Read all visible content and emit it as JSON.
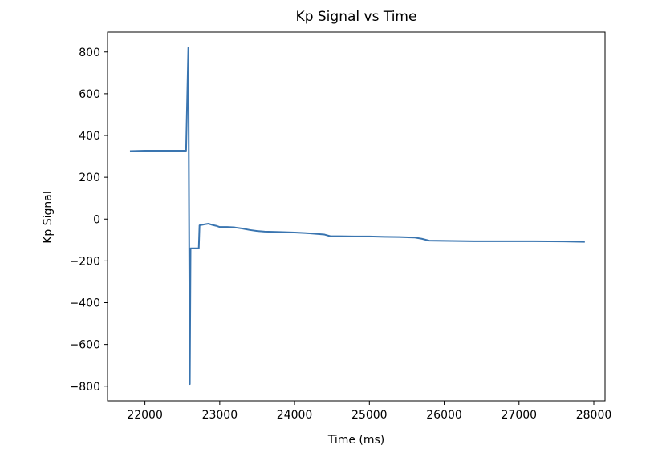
{
  "chart_data": {
    "type": "line",
    "title": "Kp Signal vs Time",
    "xlabel": "Time (ms)",
    "ylabel": "Kp Signal",
    "xlim": [
      21500,
      28150
    ],
    "ylim": [
      -870,
      895
    ],
    "xticks": [
      22000,
      23000,
      24000,
      25000,
      26000,
      27000,
      28000
    ],
    "yticks": [
      -800,
      -600,
      -400,
      -200,
      0,
      200,
      400,
      600,
      800
    ],
    "xtick_labels": [
      "22000",
      "23000",
      "24000",
      "25000",
      "26000",
      "27000",
      "28000"
    ],
    "ytick_labels": [
      "−800",
      "−600",
      "−400",
      "−200",
      "0",
      "200",
      "400",
      "600",
      "800"
    ],
    "grid": false,
    "legend": "none",
    "series": [
      {
        "color": "#3a75b0",
        "x": [
          21800,
          22000,
          22200,
          22400,
          22550,
          22580,
          22600,
          22610,
          22630,
          22650,
          22700,
          22720,
          22730,
          22800,
          22850,
          22900,
          22950,
          23000,
          23100,
          23200,
          23300,
          23400,
          23500,
          23600,
          23800,
          24000,
          24200,
          24400,
          24480,
          24600,
          24800,
          25000,
          25200,
          25400,
          25600,
          25700,
          25800,
          26000,
          26400,
          26800,
          27200,
          27600,
          27880
        ],
        "y": [
          325,
          327,
          327,
          327,
          327,
          820,
          -790,
          -140,
          -140,
          -140,
          -140,
          -140,
          -30,
          -25,
          -22,
          -28,
          -32,
          -38,
          -38,
          -40,
          -45,
          -52,
          -57,
          -60,
          -62,
          -64,
          -68,
          -74,
          -82,
          -82,
          -83,
          -83,
          -85,
          -86,
          -88,
          -94,
          -103,
          -104,
          -106,
          -106,
          -106,
          -107,
          -109
        ]
      }
    ]
  }
}
